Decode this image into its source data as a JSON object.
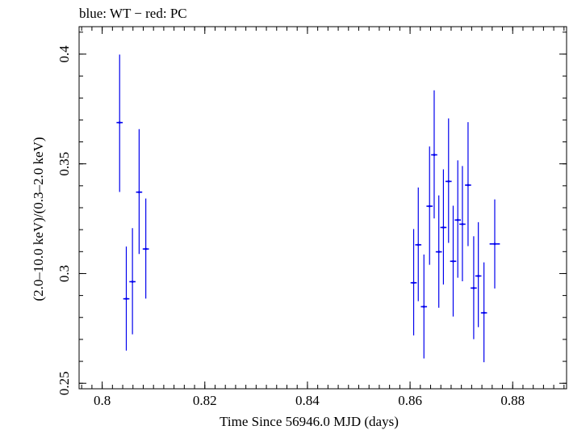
{
  "chart_data": {
    "type": "scatter",
    "title": "blue: WT − red: PC",
    "xlabel": "Time Since 56946.0 MJD (days)",
    "ylabel": "(2.0–10.0 keV)/(0.3–2.0 keV)",
    "xlim": [
      0.7955,
      0.8905
    ],
    "ylim": [
      0.2475,
      0.4125
    ],
    "x_ticks": [
      0.8,
      0.82,
      0.84,
      0.86,
      0.88
    ],
    "x_tick_labels": [
      "0.8",
      "0.82",
      "0.84",
      "0.86",
      "0.88"
    ],
    "y_ticks": [
      0.25,
      0.3,
      0.35,
      0.4
    ],
    "y_tick_labels": [
      "0.25",
      "0.3",
      "0.35",
      "0.4"
    ],
    "series": [
      {
        "name": "WT",
        "color": "#0000ee",
        "points": [
          {
            "x": 0.8034,
            "xerr": 0.0006,
            "y": 0.3688,
            "yerr_lo": 0.0316,
            "yerr_hi": 0.031
          },
          {
            "x": 0.8047,
            "xerr": 0.0006,
            "y": 0.2885,
            "yerr_lo": 0.0236,
            "yerr_hi": 0.0238
          },
          {
            "x": 0.8059,
            "xerr": 0.0006,
            "y": 0.2963,
            "yerr_lo": 0.024,
            "yerr_hi": 0.0244
          },
          {
            "x": 0.8072,
            "xerr": 0.0006,
            "y": 0.3371,
            "yerr_lo": 0.0282,
            "yerr_hi": 0.0287
          },
          {
            "x": 0.8085,
            "xerr": 0.0006,
            "y": 0.3112,
            "yerr_lo": 0.0226,
            "yerr_hi": 0.023
          },
          {
            "x": 0.8607,
            "xerr": 0.0006,
            "y": 0.2958,
            "yerr_lo": 0.024,
            "yerr_hi": 0.0245
          },
          {
            "x": 0.8616,
            "xerr": 0.0006,
            "y": 0.3131,
            "yerr_lo": 0.0257,
            "yerr_hi": 0.0261
          },
          {
            "x": 0.8627,
            "xerr": 0.0006,
            "y": 0.2849,
            "yerr_lo": 0.0236,
            "yerr_hi": 0.0238
          },
          {
            "x": 0.8638,
            "xerr": 0.0006,
            "y": 0.3307,
            "yerr_lo": 0.0267,
            "yerr_hi": 0.0272
          },
          {
            "x": 0.8647,
            "xerr": 0.0006,
            "y": 0.3541,
            "yerr_lo": 0.029,
            "yerr_hi": 0.0294
          },
          {
            "x": 0.8656,
            "xerr": 0.0006,
            "y": 0.3099,
            "yerr_lo": 0.0255,
            "yerr_hi": 0.0257
          },
          {
            "x": 0.8665,
            "xerr": 0.0006,
            "y": 0.321,
            "yerr_lo": 0.026,
            "yerr_hi": 0.0265
          },
          {
            "x": 0.8675,
            "xerr": 0.0006,
            "y": 0.342,
            "yerr_lo": 0.028,
            "yerr_hi": 0.0287
          },
          {
            "x": 0.8684,
            "xerr": 0.0006,
            "y": 0.3056,
            "yerr_lo": 0.0252,
            "yerr_hi": 0.0253
          },
          {
            "x": 0.8693,
            "xerr": 0.0006,
            "y": 0.3244,
            "yerr_lo": 0.0263,
            "yerr_hi": 0.0272
          },
          {
            "x": 0.8702,
            "xerr": 0.0006,
            "y": 0.3225,
            "yerr_lo": 0.026,
            "yerr_hi": 0.0265
          },
          {
            "x": 0.8713,
            "xerr": 0.0006,
            "y": 0.3403,
            "yerr_lo": 0.0278,
            "yerr_hi": 0.0287
          },
          {
            "x": 0.8724,
            "xerr": 0.0006,
            "y": 0.2934,
            "yerr_lo": 0.0233,
            "yerr_hi": 0.0236
          },
          {
            "x": 0.8733,
            "xerr": 0.0006,
            "y": 0.2989,
            "yerr_lo": 0.0233,
            "yerr_hi": 0.0245
          },
          {
            "x": 0.8744,
            "xerr": 0.0006,
            "y": 0.2821,
            "yerr_lo": 0.0225,
            "yerr_hi": 0.023
          },
          {
            "x": 0.8765,
            "xerr": 0.001,
            "y": 0.3135,
            "yerr_lo": 0.0203,
            "yerr_hi": 0.0203
          }
        ]
      }
    ]
  }
}
